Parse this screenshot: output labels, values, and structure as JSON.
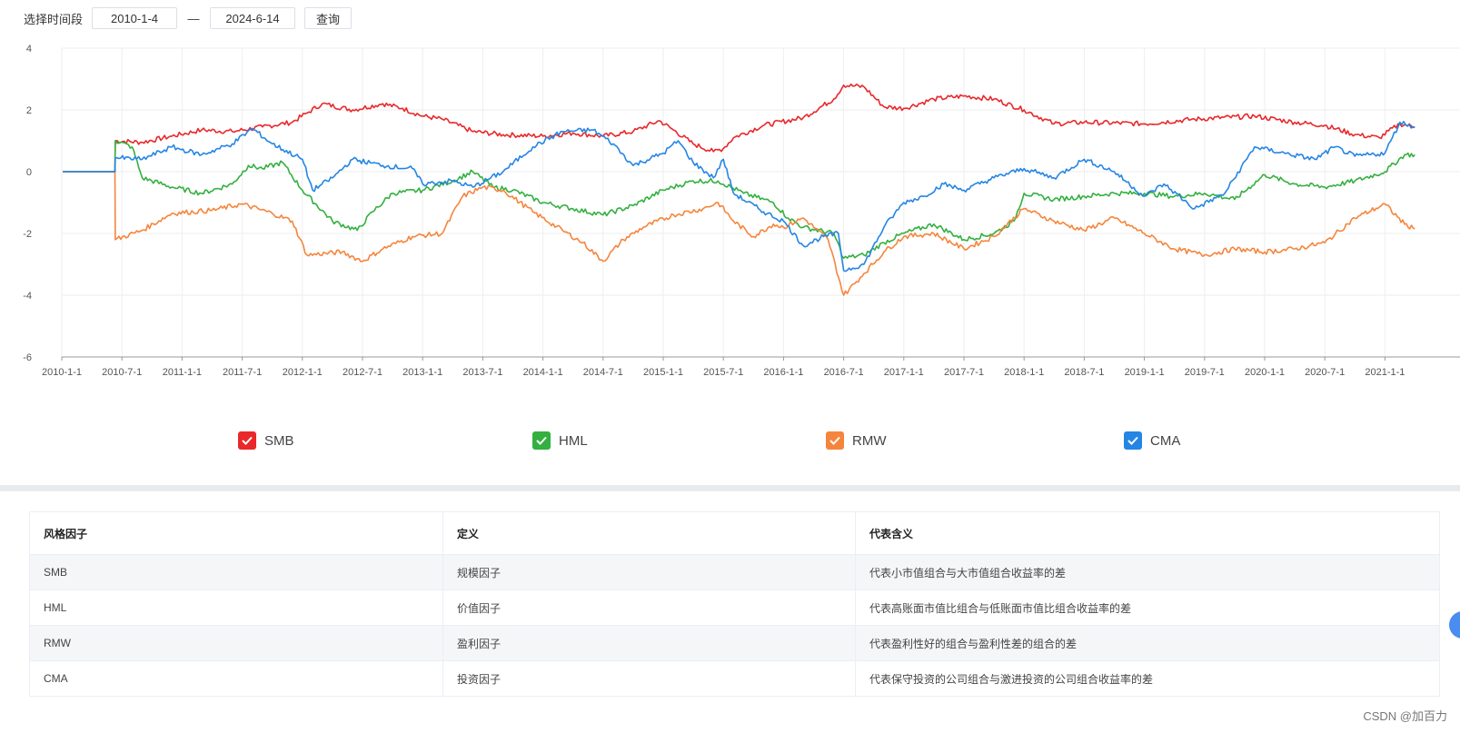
{
  "filter": {
    "label": "选择时间段",
    "start_date": "2010-1-4",
    "separator": "—",
    "end_date": "2024-6-14",
    "query_label": "查询"
  },
  "legend": [
    {
      "name": "SMB",
      "color": "#e8282b"
    },
    {
      "name": "HML",
      "color": "#33b040"
    },
    {
      "name": "RMW",
      "color": "#f5853c"
    },
    {
      "name": "CMA",
      "color": "#2585e4"
    }
  ],
  "chart_data": {
    "type": "line",
    "y_ticks": [
      "4",
      "2",
      "0",
      "-2",
      "-4",
      "-6"
    ],
    "ylim": [
      -6,
      4
    ],
    "x_ticks": [
      "2010-1-1",
      "2010-7-1",
      "2011-1-1",
      "2011-7-1",
      "2012-1-1",
      "2012-7-1",
      "2013-1-1",
      "2013-7-1",
      "2014-1-1",
      "2014-7-1",
      "2015-1-1",
      "2015-7-1",
      "2016-1-1",
      "2016-7-1",
      "2017-1-1",
      "2017-7-1",
      "2018-1-1",
      "2018-7-1",
      "2019-1-1",
      "2019-7-1",
      "2020-1-1",
      "2020-7-1",
      "2021-1-1"
    ],
    "grid": true,
    "legend_position": "bottom",
    "series": [
      {
        "name": "SMB",
        "color": "#e8282b",
        "points": [
          [
            "2010-1-4",
            0
          ],
          [
            "2010-6-10",
            0
          ],
          [
            "2010-6-11",
            1.0
          ],
          [
            "2010-9-1",
            0.95
          ],
          [
            "2010-12-1",
            1.15
          ],
          [
            "2011-3-1",
            1.35
          ],
          [
            "2011-6-1",
            1.3
          ],
          [
            "2011-9-1",
            1.45
          ],
          [
            "2011-12-1",
            1.6
          ],
          [
            "2012-1-15",
            1.9
          ],
          [
            "2012-3-1",
            2.2
          ],
          [
            "2012-6-1",
            2.0
          ],
          [
            "2012-9-1",
            2.2
          ],
          [
            "2012-11-1",
            2.05
          ],
          [
            "2013-1-1",
            1.8
          ],
          [
            "2013-3-1",
            1.7
          ],
          [
            "2013-6-1",
            1.3
          ],
          [
            "2013-9-1",
            1.2
          ],
          [
            "2014-1-1",
            1.15
          ],
          [
            "2014-4-1",
            1.25
          ],
          [
            "2014-7-1",
            1.15
          ],
          [
            "2014-10-1",
            1.3
          ],
          [
            "2014-12-20",
            1.65
          ],
          [
            "2015-2-1",
            1.35
          ],
          [
            "2015-4-1",
            0.9
          ],
          [
            "2015-6-1",
            0.65
          ],
          [
            "2015-7-1",
            0.75
          ],
          [
            "2015-8-1",
            1.1
          ],
          [
            "2015-11-1",
            1.5
          ],
          [
            "2016-3-1",
            1.75
          ],
          [
            "2016-6-1",
            2.35
          ],
          [
            "2016-7-1",
            2.8
          ],
          [
            "2016-9-1",
            2.75
          ],
          [
            "2016-11-1",
            2.1
          ],
          [
            "2017-1-1",
            2.05
          ],
          [
            "2017-4-1",
            2.35
          ],
          [
            "2017-7-1",
            2.45
          ],
          [
            "2017-10-1",
            2.35
          ],
          [
            "2018-1-1",
            2.0
          ],
          [
            "2018-4-1",
            1.55
          ],
          [
            "2018-7-1",
            1.6
          ],
          [
            "2019-1-1",
            1.55
          ],
          [
            "2019-6-1",
            1.7
          ],
          [
            "2019-12-1",
            1.8
          ],
          [
            "2020-4-1",
            1.6
          ],
          [
            "2020-7-1",
            1.5
          ],
          [
            "2020-10-1",
            1.2
          ],
          [
            "2020-12-15",
            1.1
          ],
          [
            "2021-2-15",
            1.55
          ],
          [
            "2021-4-1",
            1.45
          ]
        ]
      },
      {
        "name": "HML",
        "color": "#33b040",
        "points": [
          [
            "2010-1-4",
            0
          ],
          [
            "2010-6-10",
            0
          ],
          [
            "2010-6-11",
            1.0
          ],
          [
            "2010-8-1",
            0.8
          ],
          [
            "2010-9-1",
            -0.2
          ],
          [
            "2010-12-1",
            -0.5
          ],
          [
            "2011-3-1",
            -0.7
          ],
          [
            "2011-6-1",
            -0.4
          ],
          [
            "2011-7-20",
            0.2
          ],
          [
            "2011-9-1",
            0.1
          ],
          [
            "2011-11-1",
            0.3
          ],
          [
            "2012-1-1",
            -0.6
          ],
          [
            "2012-4-1",
            -1.6
          ],
          [
            "2012-6-15",
            -1.9
          ],
          [
            "2012-8-1",
            -1.3
          ],
          [
            "2012-10-1",
            -0.7
          ],
          [
            "2013-1-1",
            -0.6
          ],
          [
            "2013-4-1",
            -0.3
          ],
          [
            "2013-6-1",
            0.0
          ],
          [
            "2013-8-1",
            -0.5
          ],
          [
            "2013-10-1",
            -0.6
          ],
          [
            "2014-1-1",
            -1.0
          ],
          [
            "2014-4-1",
            -1.2
          ],
          [
            "2014-7-1",
            -1.4
          ],
          [
            "2014-10-1",
            -1.1
          ],
          [
            "2015-1-1",
            -0.6
          ],
          [
            "2015-4-1",
            -0.3
          ],
          [
            "2015-6-15",
            -0.3
          ],
          [
            "2015-9-1",
            -0.7
          ],
          [
            "2015-12-1",
            -1.0
          ],
          [
            "2016-1-15",
            -1.5
          ],
          [
            "2016-3-1",
            -1.8
          ],
          [
            "2016-6-1",
            -2.0
          ],
          [
            "2016-7-1",
            -2.8
          ],
          [
            "2016-9-1",
            -2.7
          ],
          [
            "2016-11-1",
            -2.3
          ],
          [
            "2017-1-1",
            -2.0
          ],
          [
            "2017-4-1",
            -1.7
          ],
          [
            "2017-7-1",
            -2.2
          ],
          [
            "2017-10-1",
            -2.0
          ],
          [
            "2017-12-1",
            -1.6
          ],
          [
            "2018-1-1",
            -0.7
          ],
          [
            "2018-4-1",
            -0.9
          ],
          [
            "2018-7-1",
            -0.8
          ],
          [
            "2018-10-1",
            -0.7
          ],
          [
            "2019-1-1",
            -0.7
          ],
          [
            "2019-4-1",
            -0.8
          ],
          [
            "2019-7-1",
            -0.7
          ],
          [
            "2019-10-1",
            -0.9
          ],
          [
            "2020-1-1",
            -0.1
          ],
          [
            "2020-4-1",
            -0.4
          ],
          [
            "2020-7-1",
            -0.5
          ],
          [
            "2020-10-1",
            -0.3
          ],
          [
            "2021-1-1",
            0.0
          ],
          [
            "2021-3-1",
            0.55
          ],
          [
            "2021-4-1",
            0.55
          ]
        ]
      },
      {
        "name": "RMW",
        "color": "#f5853c",
        "points": [
          [
            "2010-1-4",
            0
          ],
          [
            "2010-6-10",
            0
          ],
          [
            "2010-6-11",
            -2.2
          ],
          [
            "2010-9-1",
            -1.9
          ],
          [
            "2010-12-1",
            -1.35
          ],
          [
            "2011-4-1",
            -1.25
          ],
          [
            "2011-7-1",
            -1.05
          ],
          [
            "2011-10-1",
            -1.35
          ],
          [
            "2011-12-1",
            -1.6
          ],
          [
            "2012-1-15",
            -2.7
          ],
          [
            "2012-5-1",
            -2.6
          ],
          [
            "2012-7-1",
            -2.9
          ],
          [
            "2012-9-1",
            -2.5
          ],
          [
            "2012-12-1",
            -2.1
          ],
          [
            "2013-3-1",
            -2.0
          ],
          [
            "2013-5-1",
            -0.8
          ],
          [
            "2013-7-1",
            -0.5
          ],
          [
            "2013-9-1",
            -0.6
          ],
          [
            "2013-12-1",
            -1.3
          ],
          [
            "2014-3-1",
            -1.9
          ],
          [
            "2014-5-1",
            -2.3
          ],
          [
            "2014-7-1",
            -2.9
          ],
          [
            "2014-9-1",
            -2.2
          ],
          [
            "2014-11-1",
            -1.8
          ],
          [
            "2015-2-1",
            -1.4
          ],
          [
            "2015-5-1",
            -1.2
          ],
          [
            "2015-6-15",
            -1.0
          ],
          [
            "2015-8-1",
            -1.6
          ],
          [
            "2015-10-1",
            -2.1
          ],
          [
            "2015-12-1",
            -1.7
          ],
          [
            "2016-1-1",
            -1.8
          ],
          [
            "2016-3-1",
            -1.5
          ],
          [
            "2016-5-15",
            -2.2
          ],
          [
            "2016-7-1",
            -4.0
          ],
          [
            "2016-9-1",
            -3.3
          ],
          [
            "2016-11-1",
            -2.6
          ],
          [
            "2017-1-1",
            -2.1
          ],
          [
            "2017-4-1",
            -2.0
          ],
          [
            "2017-7-1",
            -2.5
          ],
          [
            "2017-10-1",
            -2.1
          ],
          [
            "2018-1-1",
            -1.2
          ],
          [
            "2018-4-1",
            -1.6
          ],
          [
            "2018-7-1",
            -1.9
          ],
          [
            "2018-10-1",
            -1.5
          ],
          [
            "2019-1-1",
            -2.0
          ],
          [
            "2019-4-1",
            -2.5
          ],
          [
            "2019-7-1",
            -2.7
          ],
          [
            "2019-10-1",
            -2.5
          ],
          [
            "2020-1-1",
            -2.6
          ],
          [
            "2020-4-1",
            -2.5
          ],
          [
            "2020-7-1",
            -2.3
          ],
          [
            "2020-10-1",
            -1.5
          ],
          [
            "2021-1-1",
            -1.05
          ],
          [
            "2021-3-1",
            -1.7
          ],
          [
            "2021-4-1",
            -1.85
          ]
        ]
      },
      {
        "name": "CMA",
        "color": "#2585e4",
        "points": [
          [
            "2010-1-4",
            0
          ],
          [
            "2010-6-10",
            0
          ],
          [
            "2010-6-11",
            0.45
          ],
          [
            "2010-9-1",
            0.4
          ],
          [
            "2010-12-1",
            0.8
          ],
          [
            "2011-3-1",
            0.55
          ],
          [
            "2011-6-1",
            0.9
          ],
          [
            "2011-8-1",
            1.4
          ],
          [
            "2011-10-1",
            0.9
          ],
          [
            "2012-1-1",
            0.4
          ],
          [
            "2012-2-1",
            -0.6
          ],
          [
            "2012-4-1",
            -0.2
          ],
          [
            "2012-6-1",
            0.4
          ],
          [
            "2012-9-1",
            0.2
          ],
          [
            "2012-12-1",
            0.1
          ],
          [
            "2013-1-1",
            -0.4
          ],
          [
            "2013-4-1",
            -0.3
          ],
          [
            "2013-6-1",
            -0.5
          ],
          [
            "2013-9-1",
            0.0
          ],
          [
            "2013-12-1",
            0.8
          ],
          [
            "2014-3-1",
            1.3
          ],
          [
            "2014-6-1",
            1.35
          ],
          [
            "2014-8-1",
            0.9
          ],
          [
            "2014-10-1",
            0.2
          ],
          [
            "2015-1-1",
            0.6
          ],
          [
            "2015-2-15",
            1.0
          ],
          [
            "2015-4-1",
            0.3
          ],
          [
            "2015-6-1",
            -0.2
          ],
          [
            "2015-7-1",
            0.4
          ],
          [
            "2015-8-1",
            -0.7
          ],
          [
            "2015-11-1",
            -1.3
          ],
          [
            "2016-1-1",
            -1.6
          ],
          [
            "2016-3-1",
            -2.4
          ],
          [
            "2016-5-1",
            -2.1
          ],
          [
            "2016-6-15",
            -2.0
          ],
          [
            "2016-7-1",
            -3.2
          ],
          [
            "2016-9-1",
            -3.0
          ],
          [
            "2016-11-1",
            -1.8
          ],
          [
            "2017-1-1",
            -1.0
          ],
          [
            "2017-3-1",
            -0.8
          ],
          [
            "2017-5-1",
            -0.4
          ],
          [
            "2017-7-1",
            -0.6
          ],
          [
            "2017-10-1",
            -0.2
          ],
          [
            "2018-1-1",
            0.1
          ],
          [
            "2018-4-1",
            -0.2
          ],
          [
            "2018-7-1",
            0.4
          ],
          [
            "2018-10-1",
            0.0
          ],
          [
            "2019-1-1",
            -0.8
          ],
          [
            "2019-3-1",
            -0.4
          ],
          [
            "2019-6-1",
            -1.2
          ],
          [
            "2019-9-1",
            -0.7
          ],
          [
            "2019-12-1",
            0.8
          ],
          [
            "2020-3-1",
            0.6
          ],
          [
            "2020-6-1",
            0.4
          ],
          [
            "2020-8-1",
            0.8
          ],
          [
            "2020-10-1",
            0.5
          ],
          [
            "2021-1-1",
            0.6
          ],
          [
            "2021-2-15",
            1.6
          ],
          [
            "2021-4-1",
            1.45
          ]
        ]
      }
    ]
  },
  "table": {
    "headers": [
      "风格因子",
      "定义",
      "代表含义"
    ],
    "rows": [
      [
        "SMB",
        "规模因子",
        "代表小市值组合与大市值组合收益率的差"
      ],
      [
        "HML",
        "价值因子",
        "代表高账面市值比组合与低账面市值比组合收益率的差"
      ],
      [
        "RMW",
        "盈利因子",
        "代表盈利性好的组合与盈利性差的组合的差"
      ],
      [
        "CMA",
        "投资因子",
        "代表保守投资的公司组合与激进投资的公司组合收益率的差"
      ]
    ]
  },
  "watermark": "CSDN @加百力"
}
